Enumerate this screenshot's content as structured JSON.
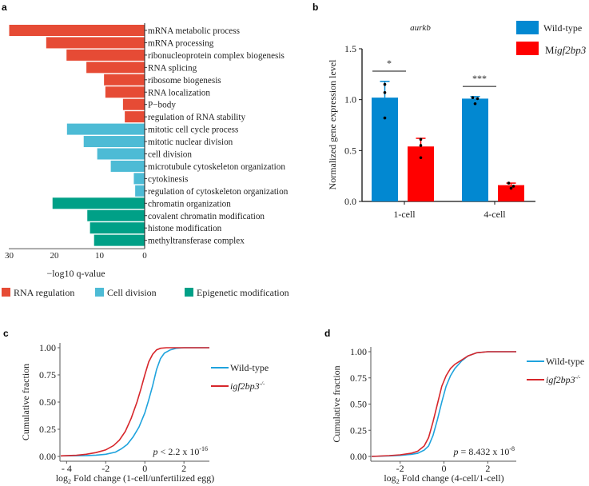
{
  "panel_labels": {
    "a": "a",
    "b": "b",
    "c": "c",
    "d": "d"
  },
  "colors": {
    "rna_regulation": "#e64b35",
    "cell_division": "#4dbbd5",
    "epigenetic": "#00a087",
    "wild_type_bar": "#0288d1",
    "mutant_bar": "#ff0000",
    "wild_type_line": "#1fa3dd",
    "mutant_line": "#d7262b"
  },
  "chart_data": [
    {
      "id": "a",
      "type": "bar",
      "orientation": "horizontal-reversed",
      "xlabel": "−log10 q-value",
      "xlim": [
        0,
        30
      ],
      "xticks": [
        30,
        20,
        10,
        0
      ],
      "categories": [
        "mRNA metabolic process",
        "mRNA processing",
        "ribonucleoprotein complex biogenesis",
        "RNA splicing",
        "ribosome biogenesis",
        "RNA localization",
        "P−body",
        "regulation of RNA stability",
        "mitotic cell cycle process",
        "mitotic nuclear division",
        "cell division",
        "microtubule cytoskeleton organization",
        "cytokinesis",
        "regulation of cytoskeleton organization",
        "chromatin organization",
        "covalent chromatin modification",
        "histone modification",
        "methyltransferase complex"
      ],
      "values": [
        30.0,
        21.8,
        17.3,
        12.9,
        9.0,
        8.7,
        4.8,
        4.4,
        17.2,
        13.5,
        10.5,
        7.5,
        2.4,
        2.1,
        20.4,
        12.7,
        12.1,
        11.2
      ],
      "groups": [
        "rna_regulation",
        "rna_regulation",
        "rna_regulation",
        "rna_regulation",
        "rna_regulation",
        "rna_regulation",
        "rna_regulation",
        "rna_regulation",
        "cell_division",
        "cell_division",
        "cell_division",
        "cell_division",
        "cell_division",
        "cell_division",
        "epigenetic",
        "epigenetic",
        "epigenetic",
        "epigenetic"
      ],
      "legend": [
        {
          "key": "rna_regulation",
          "label": "RNA regulation"
        },
        {
          "key": "cell_division",
          "label": "Cell division"
        },
        {
          "key": "epigenetic",
          "label": "Epigenetic modification"
        }
      ],
      "legend_position": "bottom"
    },
    {
      "id": "b",
      "type": "bar",
      "title": "aurkb",
      "ylabel": "Normalized gene expression level",
      "ylim": [
        0,
        1.5
      ],
      "yticks": [
        "0.0",
        "0.5",
        "1.0",
        "1.5"
      ],
      "categories": [
        "1-cell",
        "4-cell"
      ],
      "series": [
        {
          "name": "Wild-type",
          "key": "wild_type_bar",
          "values": [
            1.02,
            1.01
          ],
          "error_upper": [
            1.18,
            1.03
          ],
          "points": [
            [
              1.15,
              1.07,
              0.82
            ],
            [
              1.02,
              1.01,
              0.96
            ]
          ]
        },
        {
          "name": "Migf2bp3",
          "name_prefix": "M",
          "name_italic": "igf2bp3",
          "key": "mutant_bar",
          "values": [
            0.54,
            0.16
          ],
          "error_upper": [
            0.62,
            0.18
          ],
          "points": [
            [
              0.61,
              0.55,
              0.43
            ],
            [
              0.18,
              0.15,
              0.13
            ]
          ]
        }
      ],
      "significance": [
        "*",
        "***"
      ],
      "legend_position": "top-right"
    },
    {
      "id": "c",
      "type": "line",
      "ylabel": "Cumulative fraction",
      "xlabel_prefix": "log",
      "xlabel_sub": "2",
      "xlabel_rest": " Fold change (1-cell/unfertilized egg)",
      "xlim": [
        -4.3,
        3.3
      ],
      "ylim": [
        0,
        1
      ],
      "xticks": [
        "- 4",
        "-2",
        "0",
        "2"
      ],
      "xtick_values": [
        -4,
        -2,
        0,
        2
      ],
      "yticks": [
        "0.00",
        "0.25",
        "0.50",
        "0.75",
        "1.00"
      ],
      "annotation": {
        "p": "p",
        "rest": " < 2.2 x 10",
        "exp": "-16"
      },
      "series": [
        {
          "name": "Wild-type",
          "key": "wild_type_line",
          "x": [
            -4.3,
            -3,
            -2.5,
            -2,
            -1.5,
            -1.2,
            -0.9,
            -0.6,
            -0.3,
            0,
            0.2,
            0.4,
            0.6,
            0.8,
            1.0,
            1.3,
            1.6,
            2,
            3.3
          ],
          "y": [
            0.005,
            0.008,
            0.012,
            0.02,
            0.04,
            0.07,
            0.11,
            0.18,
            0.27,
            0.4,
            0.52,
            0.65,
            0.8,
            0.9,
            0.95,
            0.98,
            0.995,
            1.0,
            1.0
          ]
        },
        {
          "name": "igf2bp3-/-",
          "name_italic": "igf2bp3",
          "name_sup": "-/-",
          "key": "mutant_line",
          "x": [
            -4.3,
            -3.5,
            -3,
            -2.5,
            -2,
            -1.6,
            -1.3,
            -1,
            -0.7,
            -0.4,
            -0.2,
            0,
            0.2,
            0.4,
            0.6,
            0.8,
            1.1,
            1.5,
            3.3
          ],
          "y": [
            0.005,
            0.01,
            0.02,
            0.035,
            0.06,
            0.1,
            0.15,
            0.23,
            0.35,
            0.5,
            0.62,
            0.75,
            0.87,
            0.94,
            0.98,
            0.995,
            1.0,
            1.0,
            1.0
          ]
        }
      ],
      "legend_position": "right"
    },
    {
      "id": "d",
      "type": "line",
      "ylabel": "Cumulative fraction",
      "xlabel_prefix": "log",
      "xlabel_sub": "2",
      "xlabel_rest": " Fold change (4-cell/1-cell)",
      "xlim": [
        -3.3,
        3.3
      ],
      "ylim": [
        0,
        1
      ],
      "xticks": [
        "-2",
        "0",
        "2"
      ],
      "xtick_values": [
        -2,
        0,
        2
      ],
      "yticks": [
        "0.00",
        "0.25",
        "0.50",
        "0.75",
        "1.00"
      ],
      "annotation": {
        "p": "p",
        "rest": " = 8.432 x 10",
        "exp": "-8"
      },
      "series": [
        {
          "name": "Wild-type",
          "key": "wild_type_line",
          "x": [
            -3.3,
            -2.5,
            -2,
            -1.5,
            -1.2,
            -0.9,
            -0.7,
            -0.5,
            -0.3,
            -0.1,
            0.1,
            0.3,
            0.5,
            0.8,
            1.1,
            1.5,
            2,
            3.3
          ],
          "y": [
            0.0,
            0.005,
            0.01,
            0.02,
            0.03,
            0.06,
            0.1,
            0.2,
            0.35,
            0.52,
            0.67,
            0.77,
            0.84,
            0.91,
            0.96,
            0.99,
            1.0,
            1.0
          ]
        },
        {
          "name": "igf2bp3-/-",
          "name_italic": "igf2bp3",
          "name_sup": "-/-",
          "key": "mutant_line",
          "x": [
            -3.3,
            -2.5,
            -2,
            -1.5,
            -1.2,
            -0.9,
            -0.7,
            -0.5,
            -0.3,
            -0.1,
            0.1,
            0.3,
            0.5,
            0.8,
            1.1,
            1.5,
            2,
            3.3
          ],
          "y": [
            0.0,
            0.008,
            0.015,
            0.03,
            0.05,
            0.1,
            0.18,
            0.33,
            0.5,
            0.67,
            0.77,
            0.84,
            0.88,
            0.92,
            0.96,
            0.99,
            1.0,
            1.0
          ]
        }
      ],
      "legend_position": "right"
    }
  ]
}
